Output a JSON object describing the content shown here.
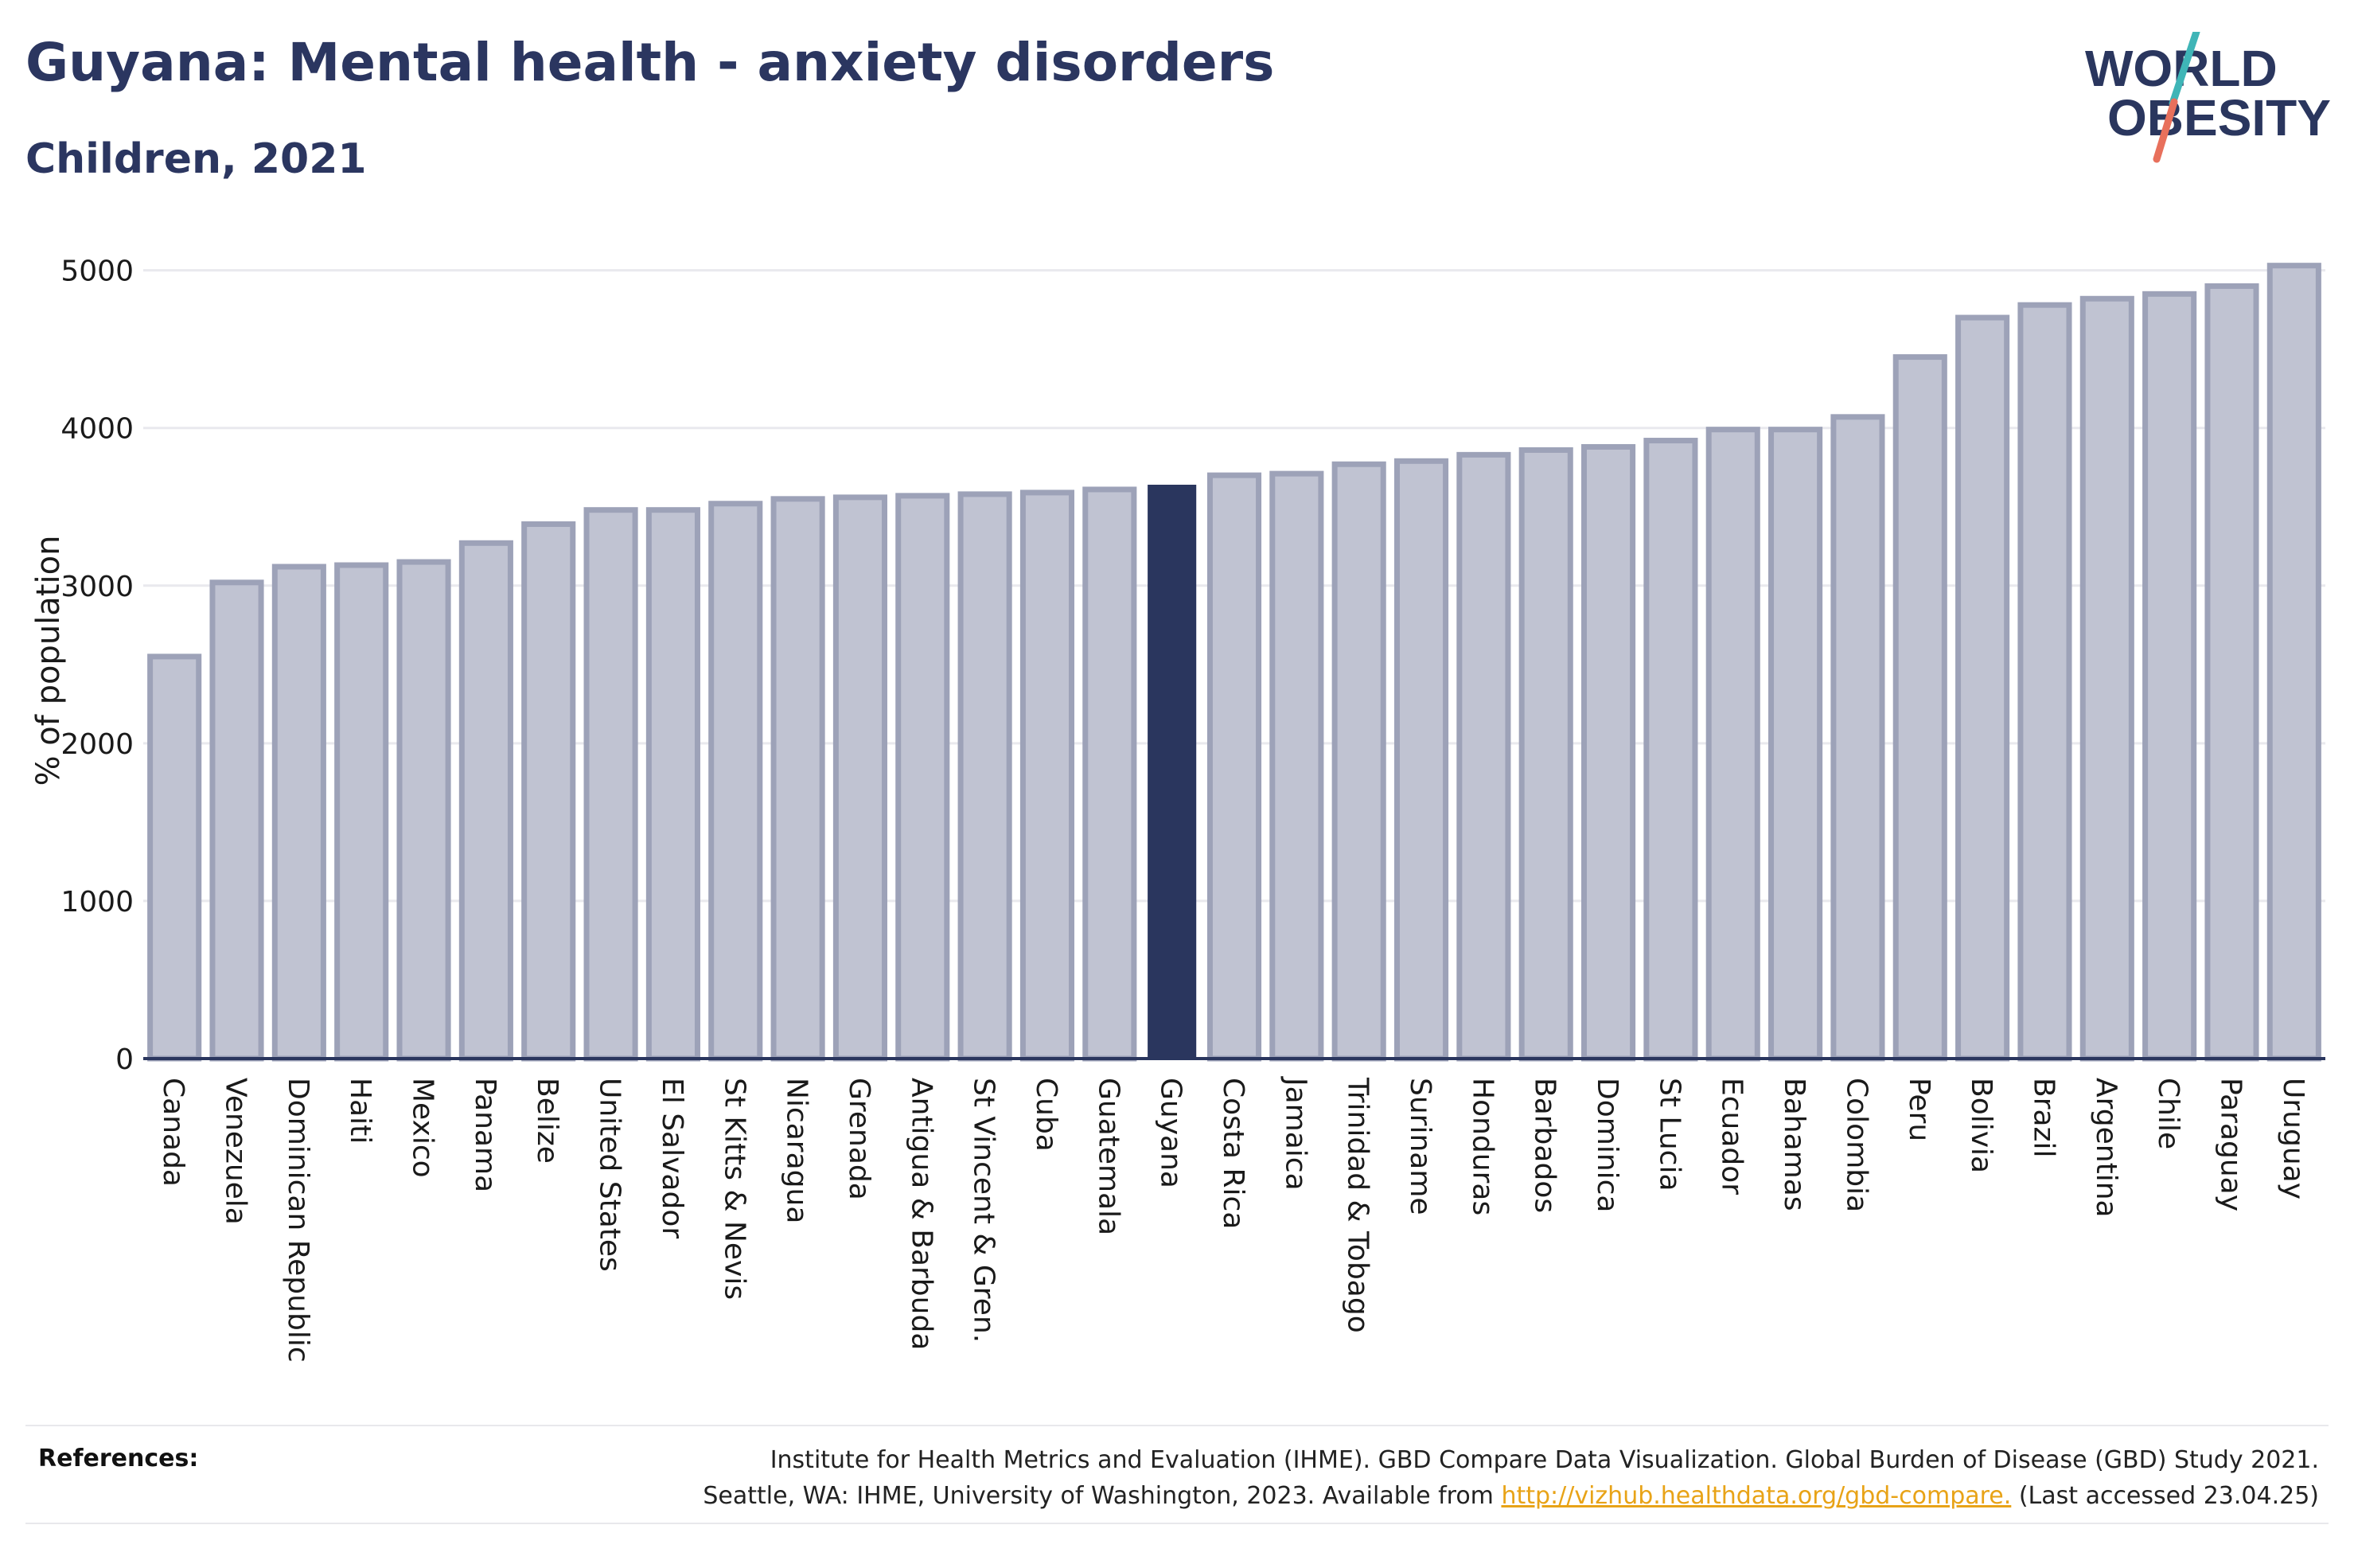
{
  "header": {
    "title": "Guyana: Mental health - anxiety disorders",
    "subtitle": "Children, 2021"
  },
  "logo": {
    "line1": "WORLD",
    "line2": "OBESITY"
  },
  "colors": {
    "bar_fill": "#c0c3d2",
    "bar_stroke": "#9da2b8",
    "highlight": "#2a365e",
    "grid": "#e9e9ee",
    "axis": "#2a365e",
    "logo_teal": "#3fb5b7",
    "logo_coral": "#e8705c"
  },
  "chart_data": {
    "type": "bar",
    "ylabel": "% of population",
    "ylim": [
      0,
      5200
    ],
    "yticks": [
      0,
      1000,
      2000,
      3000,
      4000,
      5000
    ],
    "grid": true,
    "highlight": "Guyana",
    "categories": [
      "Canada",
      "Venezuela",
      "Dominican Republic",
      "Haiti",
      "Mexico",
      "Panama",
      "Belize",
      "United States",
      "El Salvador",
      "St Kitts & Nevis",
      "Nicaragua",
      "Grenada",
      "Antigua & Barbuda",
      "St Vincent & Gren.",
      "Cuba",
      "Guatemala",
      "Guyana",
      "Costa Rica",
      "Jamaica",
      "Trinidad & Tobago",
      "Suriname",
      "Honduras",
      "Barbados",
      "Dominica",
      "St Lucia",
      "Ecuador",
      "Bahamas",
      "Colombia",
      "Peru",
      "Bolivia",
      "Brazil",
      "Argentina",
      "Chile",
      "Paraguay",
      "Uruguay"
    ],
    "values": [
      2550,
      3020,
      3120,
      3130,
      3150,
      3270,
      3390,
      3480,
      3480,
      3520,
      3550,
      3560,
      3570,
      3580,
      3590,
      3610,
      3640,
      3700,
      3710,
      3770,
      3790,
      3830,
      3860,
      3880,
      3920,
      3990,
      3990,
      4070,
      4450,
      4700,
      4780,
      4820,
      4850,
      4900,
      5030
    ]
  },
  "references": {
    "label": "References:",
    "line1": "Institute for Health Metrics and Evaluation (IHME). GBD Compare Data Visualization. Global Burden of Disease (GBD) Study 2021.",
    "line2_pre": "Seattle, WA: IHME, University of Washington, 2023. Available from ",
    "link": "http://vizhub.healthdata.org/gbd-compare.",
    "line2_post": " (Last accessed 23.04.25)"
  }
}
